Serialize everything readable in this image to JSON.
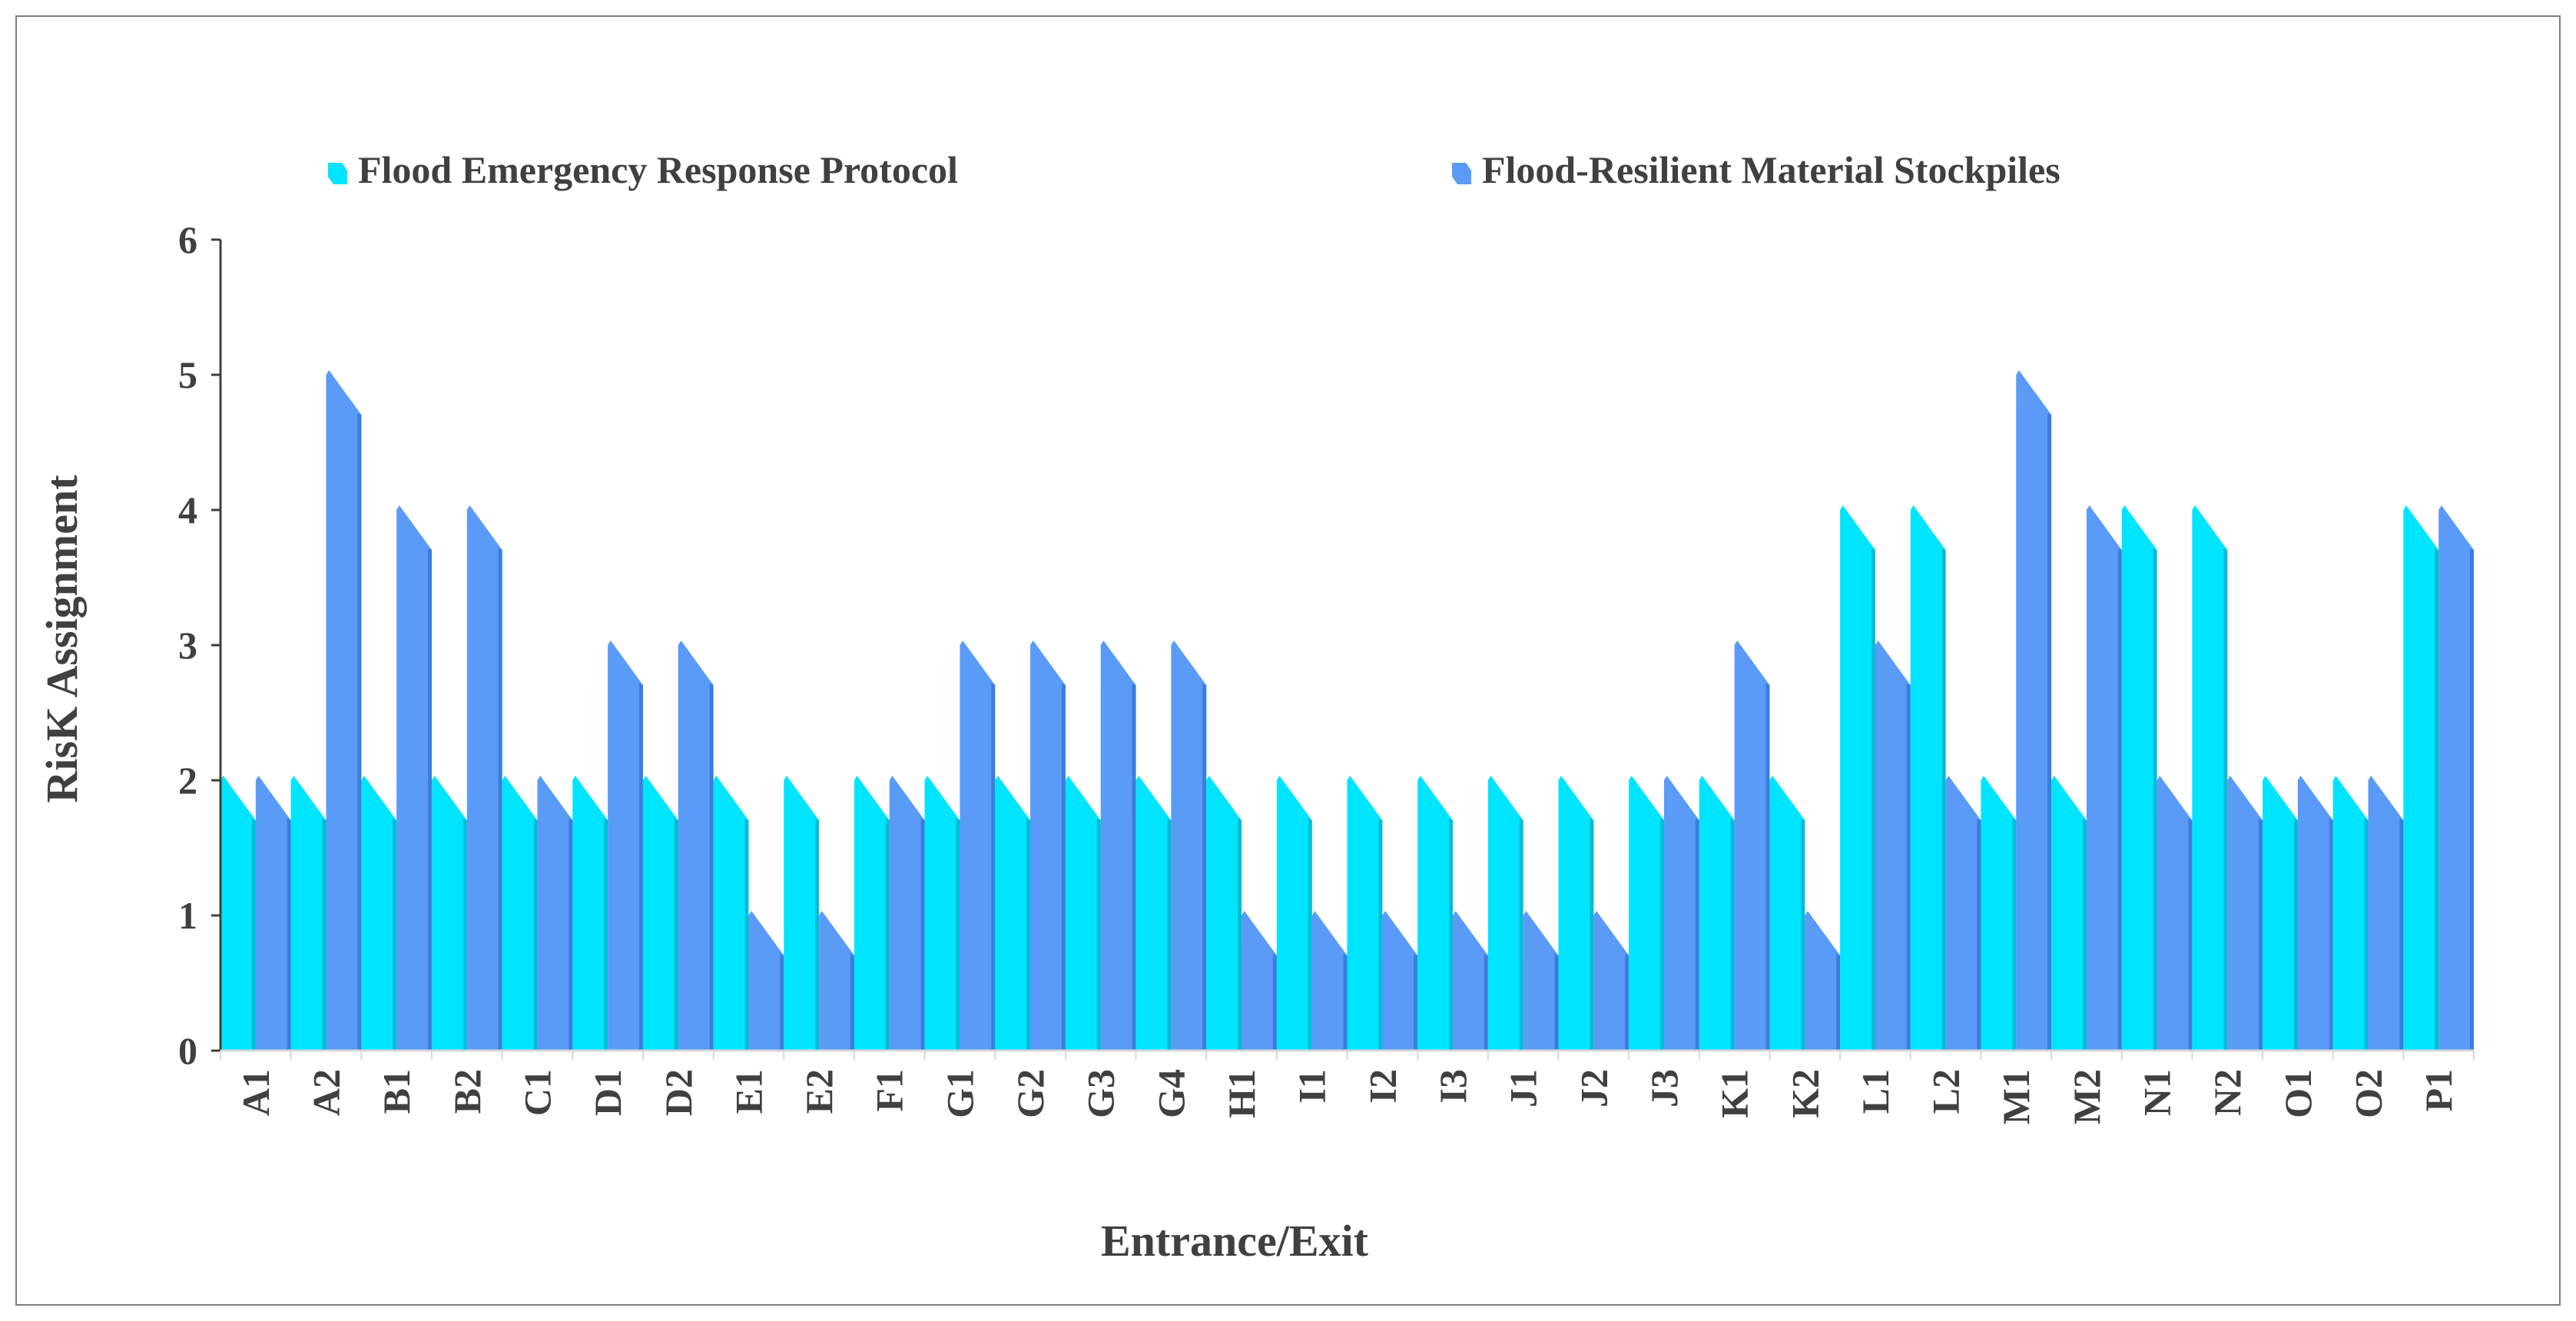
{
  "chart_data": {
    "type": "bar",
    "title": "",
    "xlabel": "Entrance/Exit",
    "ylabel": "RisK Assignment",
    "ylim": [
      0,
      6
    ],
    "yticks": [
      0,
      1,
      2,
      3,
      4,
      5,
      6
    ],
    "grid": false,
    "legend_position": "top",
    "categories": [
      "A1",
      "A2",
      "B1",
      "B2",
      "C1",
      "D1",
      "D2",
      "E1",
      "E2",
      "F1",
      "G1",
      "G2",
      "G3",
      "G4",
      "H1",
      "I1",
      "I2",
      "I3",
      "J1",
      "J2",
      "J3",
      "K1",
      "K2",
      "L1",
      "L2",
      "M1",
      "M2",
      "N1",
      "N2",
      "O1",
      "O2",
      "P1"
    ],
    "series": [
      {
        "name": "Flood Emergency Response Protocol",
        "color": "#00E5FF",
        "values": [
          2,
          2,
          2,
          2,
          2,
          2,
          2,
          2,
          2,
          2,
          2,
          2,
          2,
          2,
          2,
          2,
          2,
          2,
          2,
          2,
          2,
          2,
          2,
          4,
          4,
          2,
          2,
          4,
          4,
          2,
          2,
          4
        ]
      },
      {
        "name": "Flood-Resilient Material Stockpiles",
        "color": "#5B9BF8",
        "values": [
          2,
          5,
          4,
          4,
          2,
          3,
          3,
          1,
          1,
          2,
          3,
          3,
          3,
          3,
          1,
          1,
          1,
          1,
          1,
          1,
          2,
          3,
          1,
          3,
          2,
          5,
          4,
          2,
          2,
          2,
          2,
          4
        ]
      }
    ]
  }
}
